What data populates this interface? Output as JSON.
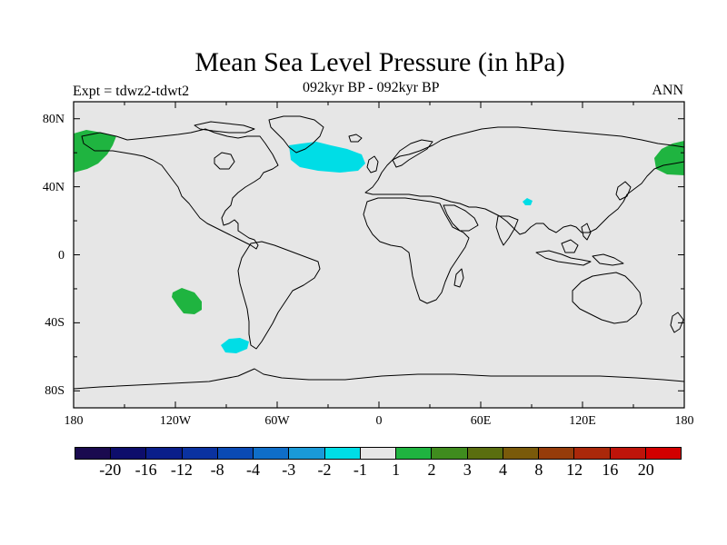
{
  "title": "Mean Sea Level Pressure (in hPa)",
  "expt": "Expt = tdwz2-tdwt2",
  "period": "092kyr BP - 092kyr BP",
  "season": "ANN",
  "map": {
    "projection": "cylindrical equidistant",
    "lon_range": [
      -180,
      180
    ],
    "lat_range": [
      -90,
      90
    ],
    "background_color": "#e6e6e6",
    "coastline_color": "#000000",
    "lat_labels": [
      "80N",
      "40N",
      "0",
      "40S",
      "80S"
    ],
    "lon_labels": [
      "180",
      "120W",
      "60W",
      "0",
      "60E",
      "120E",
      "180"
    ]
  },
  "anomaly_regions": [
    {
      "name": "North Pacific / Bering (west edge)",
      "level": "1 to 2",
      "color": "#1fb440",
      "lon": -170,
      "lat": 64
    },
    {
      "name": "North Pacific / Bering (east edge)",
      "level": "1 to 2",
      "color": "#1fb440",
      "lon": 174,
      "lat": 63
    },
    {
      "name": "Southeast Pacific",
      "level": "1 to 2",
      "color": "#1fb440",
      "lon": -113,
      "lat": -27
    },
    {
      "name": "North Atlantic (south of Greenland)",
      "level": "-2 to -1",
      "color": "#00dde6",
      "lon": -36,
      "lat": 57
    },
    {
      "name": "Southern Ocean west of Chile",
      "level": "-2 to -1",
      "color": "#00dde6",
      "lon": -85,
      "lat": -53
    },
    {
      "name": "Tibet",
      "level": "-2 to -1",
      "color": "#00dde6",
      "lon": 89,
      "lat": 32
    }
  ],
  "colorbar": {
    "colors": [
      "#1a0a4f",
      "#0d0d6b",
      "#0a1e8a",
      "#0a32a0",
      "#0a4ab4",
      "#0f6ec8",
      "#1a9ad8",
      "#00dde6",
      "#e6e6e6",
      "#1fb440",
      "#3f8c1e",
      "#5a6e0f",
      "#7a5a0a",
      "#963c0a",
      "#aa280a",
      "#be140a",
      "#d20000"
    ],
    "labels": [
      "-20",
      "-16",
      "-12",
      "-8",
      "-4",
      "-3",
      "-2",
      "-1",
      "1",
      "2",
      "3",
      "4",
      "8",
      "12",
      "16",
      "20"
    ]
  }
}
